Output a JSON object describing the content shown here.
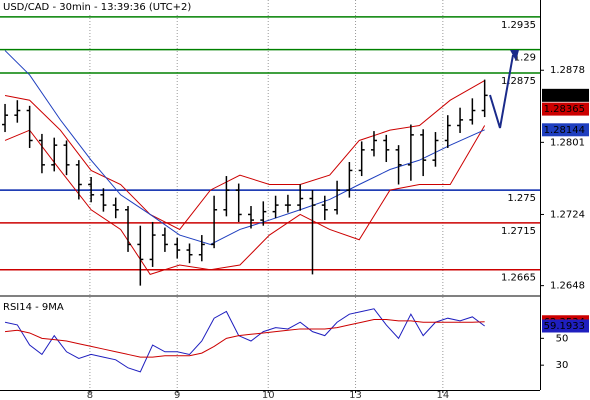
{
  "chart_data": [
    {
      "type": "candlestick",
      "title": "USD/CAD - 30min - 13:39:36 (UTC+2)",
      "color": "#000000",
      "xlim": [
        -0.41,
        43.5
      ],
      "xticks": [
        {
          "value": 6.9,
          "label": "8"
        },
        {
          "value": 14.0,
          "label": "9"
        },
        {
          "value": 21.4,
          "label": "10"
        },
        {
          "value": 28.5,
          "label": "13"
        },
        {
          "value": 35.6,
          "label": "14"
        }
      ],
      "ylim": [
        1.2638,
        1.2953
      ],
      "yticks": [
        1.2878,
        1.2801,
        1.2724,
        1.2648
      ],
      "open": [
        1.282,
        1.283,
        1.2835,
        1.2803,
        1.2777,
        1.2798,
        1.2777,
        1.2756,
        1.2745,
        1.2734,
        1.2729,
        1.2692,
        1.2676,
        1.2702,
        1.2692,
        1.2686,
        1.2681,
        1.2692,
        1.2729,
        1.275,
        1.2724,
        1.2718,
        1.2727,
        1.2734,
        1.2734,
        1.2741,
        1.2734,
        1.2729,
        1.275,
        1.2771,
        1.2793,
        1.2803,
        1.2793,
        1.2777,
        1.2809,
        1.2782,
        1.2803,
        1.2819,
        1.2825,
        1.2835
      ],
      "high": [
        1.2842,
        1.2846,
        1.284,
        1.281,
        1.2806,
        1.2803,
        1.2782,
        1.2764,
        1.2752,
        1.2742,
        1.2733,
        1.2712,
        1.2716,
        1.271,
        1.2699,
        1.2693,
        1.2702,
        1.2744,
        1.2765,
        1.2757,
        1.2733,
        1.2738,
        1.2744,
        1.2745,
        1.2756,
        1.275,
        1.2744,
        1.276,
        1.278,
        1.2802,
        1.2813,
        1.2809,
        1.2798,
        1.282,
        1.2815,
        1.2812,
        1.283,
        1.2838,
        1.2848,
        1.2868
      ],
      "low": [
        1.2812,
        1.2822,
        1.2795,
        1.2768,
        1.277,
        1.2766,
        1.274,
        1.2737,
        1.2727,
        1.272,
        1.2684,
        1.2648,
        1.2668,
        1.2684,
        1.2677,
        1.2672,
        1.2674,
        1.2688,
        1.2722,
        1.2716,
        1.2709,
        1.2712,
        1.272,
        1.2726,
        1.2728,
        1.266,
        1.2718,
        1.2724,
        1.2742,
        1.2765,
        1.2786,
        1.278,
        1.2756,
        1.276,
        1.2765,
        1.2775,
        1.2795,
        1.2811,
        1.282,
        1.2828
      ],
      "close": [
        1.283,
        1.2835,
        1.2803,
        1.2777,
        1.2798,
        1.2777,
        1.2756,
        1.2745,
        1.2734,
        1.2729,
        1.2692,
        1.2676,
        1.2702,
        1.2692,
        1.2686,
        1.2681,
        1.2692,
        1.2729,
        1.275,
        1.2724,
        1.2718,
        1.2727,
        1.2734,
        1.2734,
        1.2741,
        1.2734,
        1.2729,
        1.275,
        1.2771,
        1.2793,
        1.2803,
        1.2793,
        1.2777,
        1.2809,
        1.2782,
        1.2803,
        1.2819,
        1.2825,
        1.2835,
        1.28512
      ],
      "overlays": [
        {
          "color": "#cc0000",
          "x": [
            0,
            2,
            4.5,
            7,
            9.4,
            11.8,
            14.2,
            16.7,
            19.1,
            21.5,
            24,
            26.4,
            28.8,
            31.3,
            33.7,
            36.2,
            39
          ],
          "values": [
            1.2851,
            1.2846,
            1.2814,
            1.2771,
            1.2756,
            1.2724,
            1.2708,
            1.275,
            1.2766,
            1.2756,
            1.2756,
            1.2766,
            1.2803,
            1.2814,
            1.2819,
            1.2846,
            1.2867
          ]
        },
        {
          "color": "#cc0000",
          "x": [
            0,
            2,
            4.5,
            7,
            9.4,
            11.8,
            14.2,
            16.7,
            19.1,
            21.5,
            24,
            26.4,
            28.8,
            31.3,
            33.7,
            36.2,
            39
          ],
          "values": [
            1.2803,
            1.2814,
            1.2771,
            1.2729,
            1.2708,
            1.266,
            1.267,
            1.2665,
            1.267,
            1.2702,
            1.2724,
            1.2708,
            1.2697,
            1.275,
            1.2756,
            1.2756,
            1.2819
          ]
        },
        {
          "color": "#1f3fbf",
          "x": [
            0,
            2,
            4.5,
            7,
            9.4,
            11.8,
            14.2,
            16.7,
            19.1,
            21.5,
            24,
            26.4,
            28.8,
            31.3,
            33.7,
            36.2,
            39
          ],
          "values": [
            1.2899,
            1.2873,
            1.2825,
            1.2782,
            1.2745,
            1.2724,
            1.2702,
            1.2692,
            1.2708,
            1.2718,
            1.2729,
            1.274,
            1.2756,
            1.2772,
            1.2782,
            1.2798,
            1.28144
          ]
        }
      ],
      "levels": [
        {
          "value": 1.2935,
          "color": "#008000"
        },
        {
          "value": 1.29,
          "color": "#008000"
        },
        {
          "value": 1.2875,
          "color": "#008000"
        },
        {
          "value": 1.275,
          "color": "#0022aa"
        },
        {
          "value": 1.2715,
          "color": "#cc0000"
        },
        {
          "value": 1.2665,
          "color": "#cc0000"
        }
      ],
      "markers": [
        {
          "value": 1.28365,
          "color": "#cc0000"
        }
      ]
    },
    {
      "type": "line",
      "title": "RSI14 - 9MA",
      "xlim": [
        -0.41,
        43.5
      ],
      "ylim": [
        11.5,
        80.8
      ],
      "yticks": [
        50,
        30
      ],
      "series": [
        {
          "color": "#1f1fbf",
          "values": [
            62,
            60,
            45,
            38,
            52,
            40,
            35,
            38,
            36,
            34,
            28,
            25,
            45,
            40,
            40,
            38,
            48,
            65,
            70,
            52,
            48,
            55,
            58,
            57,
            62,
            55,
            52,
            62,
            68,
            70,
            72,
            60,
            50,
            68,
            52,
            62,
            65,
            63,
            66,
            59.1933
          ]
        },
        {
          "color": "#cc0000",
          "values": [
            55,
            56,
            54,
            50,
            49,
            48,
            46,
            44,
            42,
            40,
            38,
            36,
            36,
            37,
            37,
            37,
            39,
            44,
            50,
            52,
            53,
            54,
            55,
            56,
            57,
            57,
            57,
            58,
            60,
            62,
            64,
            64,
            63,
            63,
            62,
            62,
            62,
            62,
            62,
            62.3534
          ]
        }
      ]
    }
  ]
}
